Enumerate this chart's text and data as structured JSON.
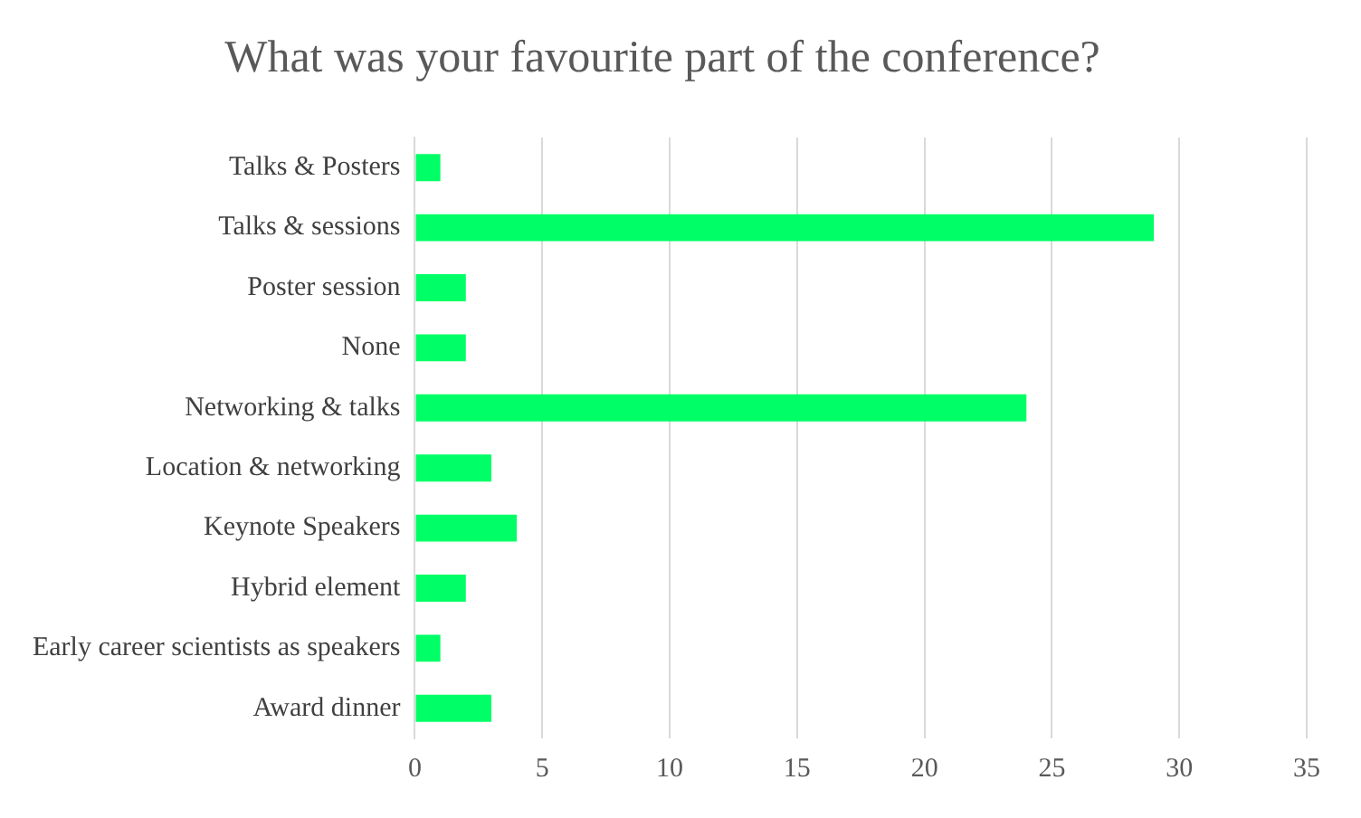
{
  "chart_data": {
    "type": "bar",
    "orientation": "horizontal",
    "title": "What was your favourite part of the conference?",
    "categories": [
      "Talks & Posters",
      "Talks & sessions",
      "Poster session",
      "None",
      "Networking & talks",
      "Location & networking",
      "Keynote Speakers",
      "Hybrid element",
      "Early career scientists as speakers",
      "Award dinner"
    ],
    "values": [
      1,
      29,
      2,
      2,
      24,
      3,
      4,
      2,
      1,
      3
    ],
    "color": "#00ff66",
    "xlim": [
      0,
      35
    ],
    "xticks": [
      0,
      5,
      10,
      15,
      20,
      25,
      30,
      35
    ],
    "grid": "x",
    "legend": false
  }
}
